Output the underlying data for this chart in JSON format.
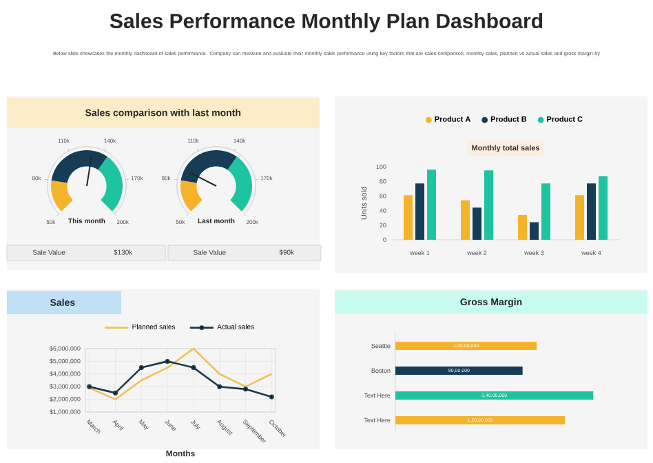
{
  "chart_data": [
    {
      "type": "other",
      "title": "Sales Performance Monthly Plan Dashboard",
      "subtitle": "Below slide showcases the monthly dashboard of sales performance. Company can measure and evaluate their monthly sales performance using key factors that are sales comparison, monthly sales, planned vs actual sales and gross margin by"
    },
    {
      "type": "other",
      "title": "Sales comparison with last month",
      "subtitle": "This month",
      "annotations": [
        "50k",
        "80k",
        "110k",
        "140k",
        "170k",
        "200k",
        "Sale Value",
        "$130k"
      ]
    },
    {
      "type": "other",
      "subtitle": "Last month",
      "annotations": [
        "50k",
        "80k",
        "110k",
        "140k",
        "170k",
        "200k",
        "Sale Value",
        "$90k"
      ]
    },
    {
      "type": "bar",
      "title": "Monthly total sales",
      "ylabel": "Units sold",
      "categories": [
        "week  1",
        "week  2",
        "week  3",
        "week  4"
      ],
      "series": [
        {
          "name": "Product A",
          "color": "#f5b32c",
          "values": [
            61,
            54,
            34,
            61
          ]
        },
        {
          "name": "Product B",
          "color": "#163d55",
          "values": [
            77,
            44,
            24,
            77
          ]
        },
        {
          "name": "Product C",
          "color": "#1ec4a0",
          "values": [
            96,
            95,
            77,
            87
          ]
        }
      ],
      "ylim": [
        0,
        100
      ],
      "yticks": [
        0,
        20,
        40,
        60,
        80,
        100
      ],
      "legend": "top"
    },
    {
      "type": "line",
      "title": "Sales",
      "xlabel": "Months",
      "categories": [
        "March",
        "April",
        "May",
        "June",
        "July",
        "August",
        "September",
        "October"
      ],
      "series": [
        {
          "name": "Planned sales",
          "color": "#f0c05a",
          "values": [
            2900000,
            2000000,
            3500000,
            4500000,
            6000000,
            4000000,
            3000000,
            4000000
          ]
        },
        {
          "name": "Actual sales",
          "color": "#1b3a4b",
          "marker": "circle",
          "values": [
            3000000,
            2500000,
            4500000,
            5000000,
            4500000,
            3000000,
            2800000,
            2200000
          ]
        }
      ],
      "ylim": [
        1000000,
        6000000
      ],
      "yticks": [
        {
          "value": 1000000,
          "label": "$1,000,000"
        },
        {
          "value": 2000000,
          "label": "$2,000,000"
        },
        {
          "value": 3000000,
          "label": "$3,000,000"
        },
        {
          "value": 4000000,
          "label": "$4,000,000"
        },
        {
          "value": 5000000,
          "label": "$5,000,000"
        },
        {
          "value": 6000000,
          "label": "$6,000,000"
        }
      ],
      "grid": true,
      "legend": "top"
    },
    {
      "type": "bar",
      "orientation": "horizontal",
      "title": "Gross Margin",
      "categories": [
        "Seattle",
        "Boston",
        "Text Here",
        "Text Here"
      ],
      "values": [
        10000000,
        9000000,
        14000000,
        12000000
      ],
      "colors": [
        "#f5b32c",
        "#163d55",
        "#1ec4a0",
        "#f5b32c"
      ],
      "value_labels": [
        "1,00,00,000",
        "90,00,000",
        "1,40,00,000",
        "1,20,00,000"
      ],
      "tick_labels": "y"
    }
  ]
}
